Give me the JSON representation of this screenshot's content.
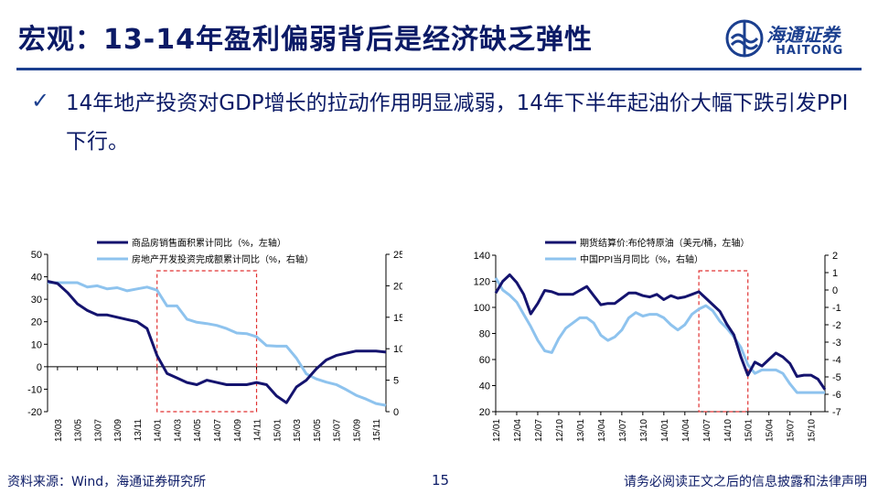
{
  "header": {
    "title": "宏观：13-14年盈利偏弱背后是经济缺乏弹性",
    "logo_cn": "海通证券",
    "logo_en": "HAITONG"
  },
  "bullet": {
    "mark": "✓",
    "text": "14年地产投资对GDP增长的拉动作用明显减弱，14年下半年起油价大幅下跌引发PPI下行。"
  },
  "footer": {
    "source": "资料来源：Wind，海通证券研究所",
    "page": "15",
    "disclaimer": "请务必阅读正文之后的信息披露和法律声明"
  },
  "colors": {
    "dark_series": "#14136e",
    "light_series": "#8ec3ee",
    "highlight": "#e03030",
    "title": "#0b1a66"
  },
  "chart_data": [
    {
      "type": "line",
      "legend_position": "top",
      "x_ticks": [
        "13/03",
        "13/05",
        "13/07",
        "13/09",
        "13/11",
        "14/01",
        "14/03",
        "14/05",
        "14/07",
        "14/09",
        "14/11",
        "15/01",
        "15/03",
        "15/05",
        "15/07",
        "15/09",
        "15/11"
      ],
      "left_axis": {
        "range": [
          -20,
          50
        ],
        "ticks": [
          "50",
          "40",
          "30",
          "20",
          "10",
          "0",
          "-10",
          "-20"
        ]
      },
      "right_axis": {
        "range": [
          0,
          25
        ],
        "ticks": [
          "25",
          "20",
          "15",
          "10",
          "5",
          "0"
        ]
      },
      "highlight_range": [
        "14/01",
        "14/11"
      ],
      "series": [
        {
          "name": "商品房销售面积累计同比（%，左轴）",
          "axis": "left",
          "x": [
            "13/02",
            "13/03",
            "13/04",
            "13/05",
            "13/06",
            "13/07",
            "13/08",
            "13/09",
            "13/10",
            "13/11",
            "13/12",
            "14/01",
            "14/02",
            "14/03",
            "14/04",
            "14/05",
            "14/06",
            "14/07",
            "14/08",
            "14/09",
            "14/10",
            "14/11",
            "14/12",
            "15/01",
            "15/02",
            "15/03",
            "15/04",
            "15/05",
            "15/06",
            "15/07",
            "15/08",
            "15/09",
            "15/10",
            "15/11",
            "15/12"
          ],
          "values": [
            38,
            37,
            33,
            28,
            25,
            23,
            23,
            22,
            21,
            20,
            17,
            5,
            -3,
            -5,
            -7,
            -8,
            -6,
            -7,
            -8,
            -8,
            -8,
            -7,
            -8,
            -13,
            -16,
            -9,
            -6,
            -1,
            3,
            5,
            6,
            7,
            7,
            7,
            6.5
          ]
        },
        {
          "name": "房地产开发投资完成额累计同比（%，右轴）",
          "axis": "right",
          "x": [
            "13/02",
            "13/03",
            "13/04",
            "13/05",
            "13/06",
            "13/07",
            "13/08",
            "13/09",
            "13/10",
            "13/11",
            "13/12",
            "14/01",
            "14/02",
            "14/03",
            "14/04",
            "14/05",
            "14/06",
            "14/07",
            "14/08",
            "14/09",
            "14/10",
            "14/11",
            "14/12",
            "15/01",
            "15/02",
            "15/03",
            "15/04",
            "15/05",
            "15/06",
            "15/07",
            "15/08",
            "15/09",
            "15/10",
            "15/11",
            "15/12"
          ],
          "values": [
            20.5,
            20.5,
            20.5,
            20.5,
            19.8,
            20,
            19.5,
            19.7,
            19.2,
            19.5,
            19.8,
            19.3,
            16.8,
            16.8,
            14.7,
            14.2,
            14,
            13.7,
            13.2,
            12.5,
            12.4,
            11.9,
            10.5,
            10.4,
            10.4,
            8.5,
            6.0,
            5.2,
            4.7,
            4.3,
            3.5,
            2.6,
            2.0,
            1.3,
            1.0
          ]
        }
      ]
    },
    {
      "type": "line",
      "legend_position": "top",
      "x_ticks": [
        "12/01",
        "12/04",
        "12/07",
        "12/10",
        "13/01",
        "13/04",
        "13/07",
        "13/10",
        "14/01",
        "14/04",
        "14/07",
        "14/10",
        "15/01",
        "15/04",
        "15/07",
        "15/10"
      ],
      "left_axis": {
        "range": [
          20,
          140
        ],
        "ticks": [
          "140",
          "120",
          "100",
          "80",
          "60",
          "40",
          "20"
        ]
      },
      "right_axis": {
        "range": [
          -7,
          2
        ],
        "ticks": [
          "2",
          "1",
          "0",
          "-1",
          "-2",
          "-3",
          "-4",
          "-5",
          "-6",
          "-7"
        ]
      },
      "highlight_range": [
        "14/06",
        "15/01"
      ],
      "series": [
        {
          "name": "期货结算价:布伦特原油（美元/桶，左轴）",
          "axis": "left",
          "x": [
            "12/01",
            "12/02",
            "12/03",
            "12/04",
            "12/05",
            "12/06",
            "12/07",
            "12/08",
            "12/09",
            "12/10",
            "12/11",
            "12/12",
            "13/01",
            "13/02",
            "13/03",
            "13/04",
            "13/05",
            "13/06",
            "13/07",
            "13/08",
            "13/09",
            "13/10",
            "13/11",
            "13/12",
            "14/01",
            "14/02",
            "14/03",
            "14/04",
            "14/05",
            "14/06",
            "14/07",
            "14/08",
            "14/09",
            "14/10",
            "14/11",
            "14/12",
            "15/01",
            "15/02",
            "15/03",
            "15/04",
            "15/05",
            "15/06",
            "15/07",
            "15/08",
            "15/09",
            "15/10",
            "15/11",
            "15/12"
          ],
          "values": [
            111,
            120,
            125,
            119,
            110,
            95,
            103,
            113,
            112,
            110,
            110,
            110,
            113,
            116,
            109,
            102,
            103,
            103,
            107,
            111,
            111,
            109,
            108,
            110,
            106,
            109,
            107,
            108,
            110,
            112,
            107,
            102,
            97,
            87,
            79,
            62,
            48,
            58,
            55,
            60,
            65,
            62,
            57,
            47,
            48,
            48,
            45,
            37
          ]
        },
        {
          "name": "中国PPI当月同比（%，右轴）",
          "axis": "right",
          "x": [
            "12/01",
            "12/02",
            "12/03",
            "12/04",
            "12/05",
            "12/06",
            "12/07",
            "12/08",
            "12/09",
            "12/10",
            "12/11",
            "12/12",
            "13/01",
            "13/02",
            "13/03",
            "13/04",
            "13/05",
            "13/06",
            "13/07",
            "13/08",
            "13/09",
            "13/10",
            "13/11",
            "13/12",
            "14/01",
            "14/02",
            "14/03",
            "14/04",
            "14/05",
            "14/06",
            "14/07",
            "14/08",
            "14/09",
            "14/10",
            "14/11",
            "14/12",
            "15/01",
            "15/02",
            "15/03",
            "15/04",
            "15/05",
            "15/06",
            "15/07",
            "15/08",
            "15/09",
            "15/10",
            "15/11",
            "15/12"
          ],
          "values": [
            0.7,
            0,
            -0.3,
            -0.7,
            -1.4,
            -2.1,
            -2.9,
            -3.5,
            -3.6,
            -2.8,
            -2.2,
            -1.9,
            -1.6,
            -1.6,
            -1.9,
            -2.6,
            -2.9,
            -2.7,
            -2.3,
            -1.6,
            -1.3,
            -1.5,
            -1.4,
            -1.4,
            -1.6,
            -2.0,
            -2.3,
            -2.0,
            -1.4,
            -1.1,
            -0.9,
            -1.2,
            -1.8,
            -2.2,
            -2.7,
            -3.3,
            -4.3,
            -4.8,
            -4.6,
            -4.6,
            -4.6,
            -4.8,
            -5.4,
            -5.9,
            -5.9,
            -5.9,
            -5.9,
            -5.9
          ]
        }
      ]
    }
  ]
}
